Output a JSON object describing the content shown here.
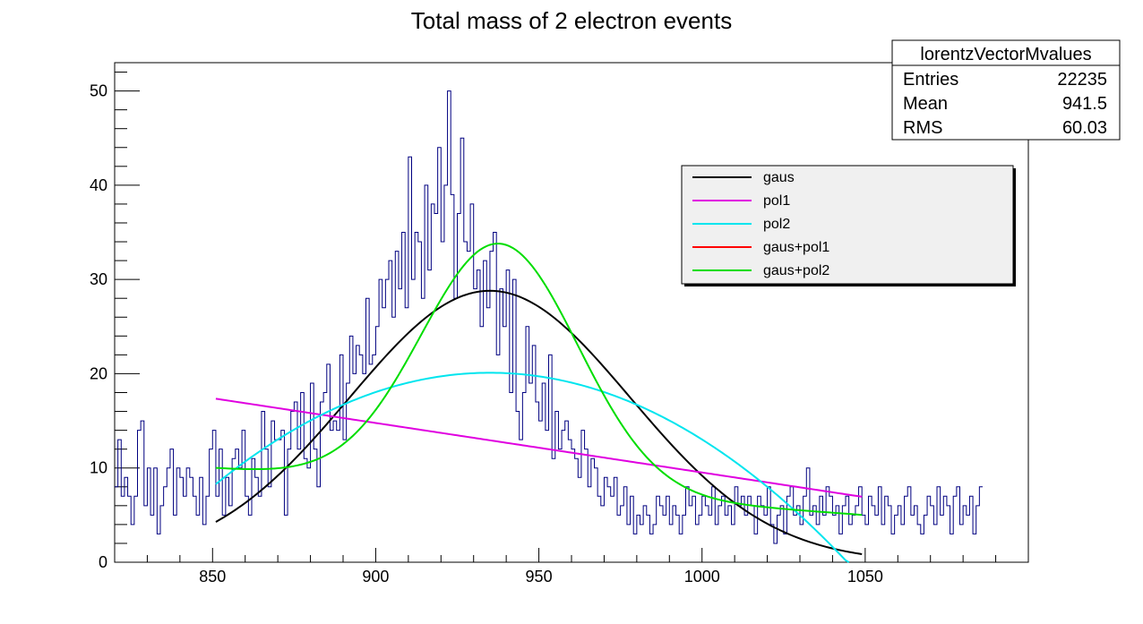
{
  "chart_data": {
    "type": "line",
    "title": "Total mass of 2 electron events",
    "xlabel": "",
    "ylabel": "",
    "xlim": [
      820,
      1100
    ],
    "ylim": [
      0,
      53
    ],
    "x_ticks": [
      850,
      900,
      950,
      1000,
      1050
    ],
    "y_ticks": [
      0,
      10,
      20,
      30,
      40,
      50
    ],
    "legend_position": "upper-right inside plot",
    "stats_box": {
      "title": "lorentzVectorMvalues",
      "rows": [
        {
          "label": "Entries",
          "value": "22235"
        },
        {
          "label": "Mean",
          "value": "941.5"
        },
        {
          "label": "RMS",
          "value": "60.03"
        }
      ]
    },
    "histogram": {
      "name": "lorentzVectorMvalues",
      "color": "#000080",
      "bin_width": 1,
      "x_start": 820,
      "counts": [
        8,
        13,
        7,
        9,
        7,
        4,
        7,
        14,
        15,
        6,
        10,
        5,
        10,
        3,
        6,
        8,
        10,
        12,
        5,
        10,
        9,
        7,
        10,
        9,
        7,
        5,
        9,
        4,
        7,
        12,
        14,
        7,
        12,
        5,
        9,
        6,
        11,
        12,
        10,
        14,
        7,
        5,
        11,
        9,
        7,
        16,
        12,
        8,
        15,
        13,
        13,
        14,
        5,
        12,
        16,
        17,
        12,
        18,
        11,
        10,
        19,
        12,
        8,
        17,
        18,
        21,
        14,
        15,
        14,
        22,
        13,
        19,
        24,
        20,
        23,
        22,
        20,
        28,
        21,
        22,
        25,
        30,
        27,
        30,
        32,
        26,
        33,
        29,
        35,
        27,
        43,
        30,
        35,
        34,
        28,
        40,
        31,
        38,
        37,
        44,
        34,
        40,
        50,
        39,
        28,
        37,
        45,
        34,
        33,
        38,
        29,
        31,
        25,
        32,
        27,
        33,
        35,
        22,
        29,
        25,
        31,
        18,
        30,
        16,
        13,
        18,
        25,
        19,
        23,
        17,
        15,
        19,
        14,
        22,
        11,
        16,
        12,
        14,
        15,
        13,
        12,
        11,
        9,
        14,
        12,
        8,
        11,
        10,
        7,
        6,
        9,
        8,
        7,
        9,
        5,
        6,
        8,
        4,
        7,
        3,
        5,
        4,
        6,
        5,
        3,
        4,
        7,
        6,
        5,
        7,
        4,
        6,
        5,
        3,
        5,
        8,
        6,
        7,
        4,
        5,
        7,
        6,
        5,
        8,
        4,
        6,
        7,
        5,
        6,
        4,
        8,
        6,
        7,
        5,
        7,
        6,
        3,
        7,
        6,
        5,
        8,
        4,
        2,
        5,
        6,
        3,
        7,
        8,
        5,
        6,
        4,
        7,
        10,
        5,
        6,
        4,
        7,
        5,
        8,
        7,
        5,
        6,
        3,
        6,
        7,
        4,
        5,
        6,
        8,
        5,
        4,
        7,
        6,
        5,
        8,
        4,
        7,
        6,
        3,
        5,
        6,
        4,
        7,
        8,
        5,
        6,
        4,
        3,
        5,
        7,
        6,
        4,
        8,
        5,
        7,
        6,
        3,
        7,
        8,
        4,
        6,
        5,
        7,
        3,
        6,
        8
      ]
    },
    "fits": [
      {
        "name": "gaus",
        "color": "#000000",
        "type": "gaus",
        "params": {
          "A": 28.8,
          "mu": 935,
          "sigma": 43
        }
      },
      {
        "name": "pol1",
        "color": "#e000e0",
        "type": "pol1",
        "params": {
          "y_at_850": 17.4,
          "y_at_1048": 7.0
        }
      },
      {
        "name": "pol2",
        "color": "#00e5ee",
        "type": "pol2",
        "params": {
          "peak_x": 935,
          "peak_y": 20.1,
          "y_at_850": 8.0
        }
      },
      {
        "name": "gaus+pol1",
        "color": "#ff0000",
        "type": "hidden"
      },
      {
        "name": "gaus+pol2",
        "color": "#00dd00",
        "type": "gaus+pol2",
        "params": {
          "A": 26,
          "mu": 938,
          "sigma": 24,
          "base_at_850": 10,
          "base_at_1050": 5
        }
      }
    ],
    "fit_range": [
      851,
      1049
    ]
  }
}
